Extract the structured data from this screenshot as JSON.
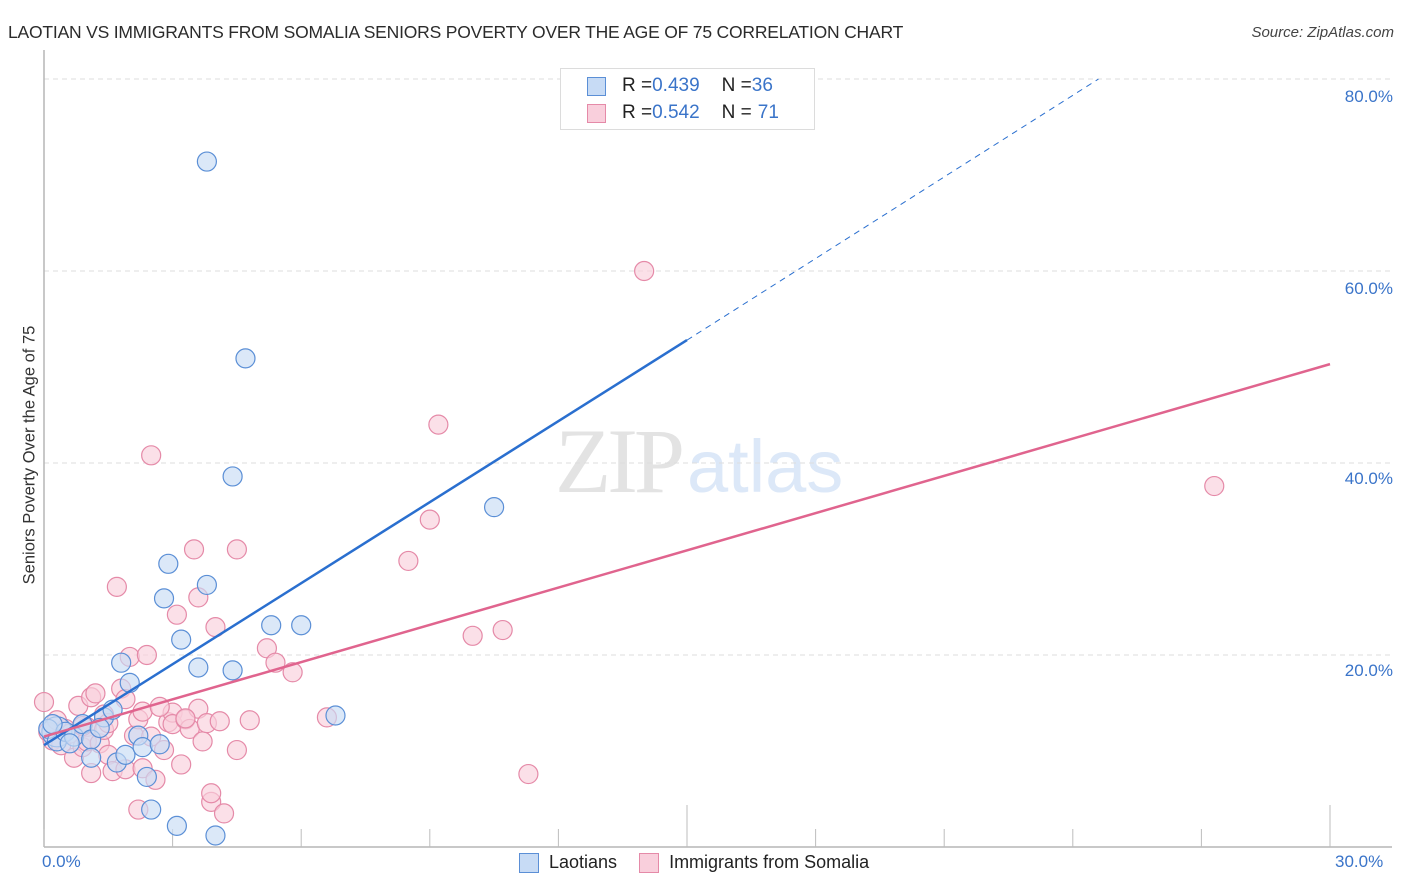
{
  "header": {
    "title": "LAOTIAN VS IMMIGRANTS FROM SOMALIA SENIORS POVERTY OVER THE AGE OF 75 CORRELATION CHART",
    "source": "Source: ZipAtlas.com"
  },
  "watermark": {
    "zip": "ZIP",
    "atlas": "atlas"
  },
  "colors": {
    "laotians_fill": "#c7dbf5",
    "laotians_stroke": "#5b8fd6",
    "laotians_line": "#2a6fcf",
    "somalia_fill": "#f9cfdc",
    "somalia_stroke": "#e58aa8",
    "somalia_line": "#e0648e",
    "tick_label": "#3a74c9",
    "grid": "#dedede"
  },
  "stats_legend": {
    "rows": [
      {
        "r_label": "R = ",
        "r_value": "0.439",
        "n_label": "N = ",
        "n_value": "36"
      },
      {
        "r_label": "R = ",
        "r_value": "0.542",
        "n_label": "N = ",
        "n_value": "71"
      }
    ]
  },
  "bottom_legend": {
    "items": [
      {
        "label": "Laotians"
      },
      {
        "label": "Immigrants from Somalia"
      }
    ]
  },
  "axes": {
    "ylabel": "Seniors Poverty Over the Age of 75",
    "y_ticks": [
      "80.0%",
      "60.0%",
      "40.0%",
      "20.0%"
    ],
    "x_tick_left": "0.0%",
    "x_tick_right": "30.0%"
  },
  "chart_data": {
    "type": "scatter",
    "title": "LAOTIAN VS IMMIGRANTS FROM SOMALIA SENIORS POVERTY OVER THE AGE OF 75 CORRELATION CHART",
    "xlabel": "",
    "ylabel": "Seniors Poverty Over the Age of 75",
    "xlim": [
      0,
      30
    ],
    "ylim": [
      0,
      80
    ],
    "x_ticks": [
      0,
      3,
      6,
      9,
      12,
      15,
      18,
      21,
      24,
      27,
      30
    ],
    "y_ticks": [
      20,
      40,
      60,
      80
    ],
    "grid": {
      "horizontal": true,
      "style": "dashed"
    },
    "legend_position": "bottom-center",
    "series": [
      {
        "name": "Laotians",
        "R": 0.439,
        "N": 36,
        "trendline": {
          "x0": 0,
          "y0": 10.6,
          "x1": 15,
          "y1": 52.8,
          "dashed_to_x": 24.6,
          "dashed_to_y": 80
        },
        "points": [
          [
            0.1,
            12.3
          ],
          [
            0.3,
            11.0
          ],
          [
            0.5,
            12.0
          ],
          [
            0.7,
            11.5
          ],
          [
            0.9,
            12.8
          ],
          [
            1.1,
            11.2
          ],
          [
            1.1,
            9.3
          ],
          [
            1.4,
            13.5
          ],
          [
            1.6,
            14.3
          ],
          [
            1.7,
            8.8
          ],
          [
            1.8,
            19.2
          ],
          [
            1.9,
            9.6
          ],
          [
            2.0,
            17.1
          ],
          [
            2.2,
            11.6
          ],
          [
            2.3,
            10.4
          ],
          [
            2.4,
            7.3
          ],
          [
            2.5,
            3.9
          ],
          [
            2.7,
            10.7
          ],
          [
            2.8,
            25.9
          ],
          [
            2.9,
            29.5
          ],
          [
            3.1,
            2.2
          ],
          [
            3.2,
            21.6
          ],
          [
            3.6,
            18.7
          ],
          [
            3.8,
            71.4
          ],
          [
            3.8,
            27.3
          ],
          [
            4.0,
            1.2
          ],
          [
            4.4,
            38.6
          ],
          [
            4.4,
            18.4
          ],
          [
            4.7,
            50.9
          ],
          [
            5.3,
            23.1
          ],
          [
            6.0,
            23.1
          ],
          [
            6.8,
            13.7
          ],
          [
            10.5,
            35.4
          ],
          [
            0.2,
            12.8
          ],
          [
            0.6,
            10.8
          ],
          [
            1.3,
            12.4
          ]
        ]
      },
      {
        "name": "Immigrants from Somalia",
        "R": 0.542,
        "N": 71,
        "trendline": {
          "x0": 0,
          "y0": 11.5,
          "x1": 30,
          "y1": 50.3
        },
        "points": [
          [
            0.0,
            15.1
          ],
          [
            0.1,
            12.0
          ],
          [
            0.2,
            11.1
          ],
          [
            0.4,
            10.6
          ],
          [
            0.5,
            12.3
          ],
          [
            0.6,
            11.8
          ],
          [
            0.7,
            9.3
          ],
          [
            0.8,
            14.7
          ],
          [
            0.9,
            10.4
          ],
          [
            1.0,
            12.5
          ],
          [
            1.0,
            11.0
          ],
          [
            1.1,
            15.6
          ],
          [
            1.1,
            7.7
          ],
          [
            1.2,
            16.0
          ],
          [
            1.3,
            10.8
          ],
          [
            1.4,
            13.8
          ],
          [
            1.4,
            12.2
          ],
          [
            1.5,
            9.6
          ],
          [
            1.6,
            7.9
          ],
          [
            1.7,
            27.1
          ],
          [
            1.8,
            16.5
          ],
          [
            1.9,
            15.4
          ],
          [
            1.9,
            8.1
          ],
          [
            2.0,
            19.8
          ],
          [
            2.1,
            11.6
          ],
          [
            2.2,
            13.3
          ],
          [
            2.2,
            3.9
          ],
          [
            2.3,
            14.1
          ],
          [
            2.3,
            8.2
          ],
          [
            2.4,
            20.0
          ],
          [
            2.5,
            40.8
          ],
          [
            2.5,
            11.5
          ],
          [
            2.6,
            7.0
          ],
          [
            2.8,
            10.1
          ],
          [
            2.9,
            13.0
          ],
          [
            3.0,
            14.0
          ],
          [
            3.0,
            12.8
          ],
          [
            3.1,
            24.2
          ],
          [
            3.2,
            8.6
          ],
          [
            3.3,
            13.3
          ],
          [
            3.4,
            12.3
          ],
          [
            3.5,
            31.0
          ],
          [
            3.6,
            26.0
          ],
          [
            3.6,
            14.4
          ],
          [
            3.7,
            11.0
          ],
          [
            3.8,
            12.9
          ],
          [
            3.9,
            4.7
          ],
          [
            3.9,
            5.6
          ],
          [
            4.0,
            22.9
          ],
          [
            4.1,
            13.1
          ],
          [
            4.2,
            3.5
          ],
          [
            4.5,
            31.0
          ],
          [
            4.5,
            10.1
          ],
          [
            4.8,
            13.2
          ],
          [
            5.2,
            20.7
          ],
          [
            5.4,
            19.2
          ],
          [
            5.8,
            18.2
          ],
          [
            6.6,
            13.5
          ],
          [
            8.5,
            29.8
          ],
          [
            9.0,
            34.1
          ],
          [
            9.2,
            44.0
          ],
          [
            10.0,
            22.0
          ],
          [
            10.7,
            22.6
          ],
          [
            11.3,
            7.6
          ],
          [
            14.0,
            60.0
          ],
          [
            27.3,
            37.6
          ],
          [
            0.3,
            13.2
          ],
          [
            0.9,
            12.6
          ],
          [
            1.5,
            12.9
          ],
          [
            2.7,
            14.6
          ],
          [
            3.3,
            13.4
          ]
        ]
      }
    ]
  }
}
